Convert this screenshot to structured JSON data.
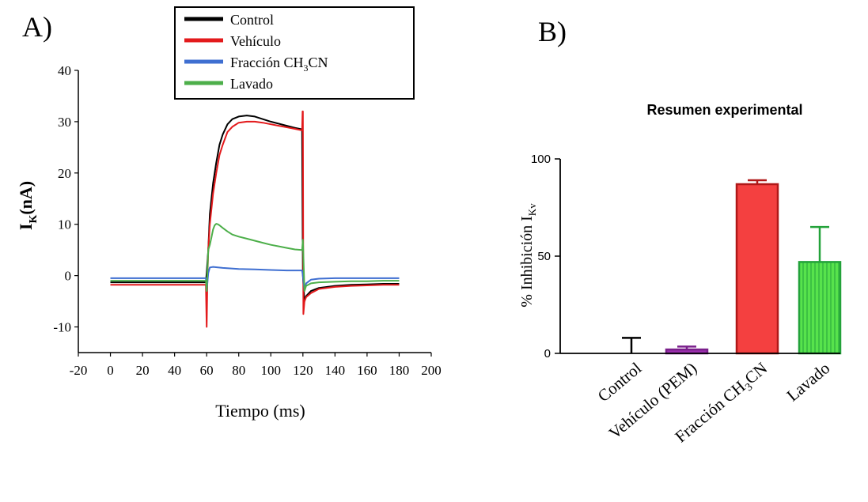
{
  "panel_labels": {
    "a": "A)",
    "b": "B)"
  },
  "chart_data": [
    {
      "type": "line",
      "xlabel": "Tiempo (ms)",
      "ylabel": {
        "main": "I",
        "sub": "K",
        "unit": "(nA)"
      },
      "xlim": [
        -20,
        200
      ],
      "ylim": [
        -15,
        40
      ],
      "xticks": [
        "-20",
        "0",
        "20",
        "40",
        "60",
        "80",
        "100",
        "120",
        "140",
        "160",
        "180",
        "200"
      ],
      "yticks": [
        "40",
        "30",
        "20",
        "10",
        "0",
        "-10"
      ],
      "legend_position": "top",
      "legend": [
        {
          "label": "Control",
          "color": "#000000"
        },
        {
          "label": "Vehículo",
          "color": "#e31a1c"
        },
        {
          "label_main": "Fracción CH",
          "label_sub": "3",
          "label_tail": "CN",
          "color": "#3f6fd1"
        },
        {
          "label": "Lavado",
          "color": "#4daf4a"
        }
      ],
      "series": [
        {
          "name": "Control",
          "color": "#000000",
          "x": [
            0,
            59.5,
            60,
            61,
            62,
            64,
            66,
            68,
            70,
            73,
            76,
            80,
            85,
            90,
            95,
            100,
            105,
            110,
            115,
            119.5,
            120,
            121,
            122,
            125,
            130,
            140,
            150,
            160,
            170,
            180
          ],
          "y": [
            -1.3,
            -1.3,
            0.5,
            5,
            12,
            18,
            22,
            25.5,
            27.5,
            29.5,
            30.5,
            31,
            31.2,
            31,
            30.5,
            30,
            29.6,
            29.2,
            28.8,
            28.5,
            0,
            -5,
            -4,
            -3,
            -2.4,
            -2,
            -1.8,
            -1.7,
            -1.6,
            -1.6
          ]
        },
        {
          "name": "Vehículo",
          "color": "#e31a1c",
          "x": [
            0,
            59.5,
            60,
            60.5,
            61,
            62,
            64,
            66,
            68,
            70,
            73,
            76,
            80,
            85,
            90,
            95,
            100,
            105,
            110,
            115,
            119.5,
            119.8,
            120,
            120.3,
            121,
            122,
            125,
            130,
            140,
            150,
            160,
            170,
            180
          ],
          "y": [
            -1.8,
            -1.8,
            -10,
            0,
            5,
            10,
            16,
            20,
            23.5,
            25.5,
            28,
            29,
            29.8,
            30,
            30,
            29.8,
            29.5,
            29.2,
            28.9,
            28.6,
            28.3,
            32,
            32,
            -7.5,
            -5,
            -4.2,
            -3.4,
            -2.6,
            -2.2,
            -2,
            -1.9,
            -1.8,
            -1.8
          ]
        },
        {
          "name": "Fracción CH3CN",
          "color": "#3f6fd1",
          "x": [
            0,
            59.5,
            60,
            61,
            62,
            64,
            70,
            80,
            90,
            100,
            110,
            119.5,
            120,
            121,
            122,
            125,
            130,
            140,
            150,
            160,
            170,
            180
          ],
          "y": [
            -0.5,
            -0.5,
            -3,
            0.5,
            1.6,
            1.7,
            1.5,
            1.3,
            1.2,
            1.1,
            1,
            1,
            0,
            -3,
            -1.5,
            -0.8,
            -0.6,
            -0.5,
            -0.5,
            -0.5,
            -0.5,
            -0.5
          ]
        },
        {
          "name": "Lavado",
          "color": "#4daf4a",
          "x": [
            0,
            59.5,
            60,
            61,
            62,
            63,
            64,
            65,
            66,
            67,
            68,
            70,
            73,
            76,
            80,
            85,
            90,
            95,
            100,
            105,
            110,
            115,
            119.5,
            120,
            121,
            122,
            125,
            130,
            140,
            150,
            160,
            170,
            180
          ],
          "y": [
            -1,
            -1,
            -3,
            5,
            6,
            7.5,
            9,
            9.8,
            10.1,
            10,
            9.8,
            9.3,
            8.6,
            8,
            7.6,
            7.2,
            6.8,
            6.4,
            6,
            5.7,
            5.4,
            5.1,
            5,
            7,
            -3,
            -2,
            -1.5,
            -1.3,
            -1.2,
            -1.1,
            -1.1,
            -1,
            -1
          ]
        }
      ]
    },
    {
      "type": "bar",
      "title": "Resumen experimental",
      "ylabel": {
        "main": "% Inhibición I",
        "sub": "Kv"
      },
      "ylim": [
        0,
        100
      ],
      "yticks": [
        "0",
        "50",
        "100"
      ],
      "categories": [
        "Control",
        "Vehículo (PEM)",
        "Fracción CH3CN",
        "Lavado"
      ],
      "category_labels": [
        {
          "main": "Control"
        },
        {
          "main": "Vehículo (PEM)"
        },
        {
          "main": "Fracción CH",
          "sub": "3",
          "tail": "CN"
        },
        {
          "main": "Lavado"
        }
      ],
      "values": [
        0,
        2,
        87,
        47
      ],
      "errors": [
        8,
        1.5,
        2,
        18
      ],
      "colors": [
        {
          "fill": "#000000",
          "edge": "#000000"
        },
        {
          "fill": "#9b2fae",
          "edge": "#7a1f8b"
        },
        {
          "fill": "#f44040",
          "edge": "#b01818"
        },
        {
          "fill": "#57e34c",
          "edge": "#23a23a"
        }
      ]
    }
  ]
}
